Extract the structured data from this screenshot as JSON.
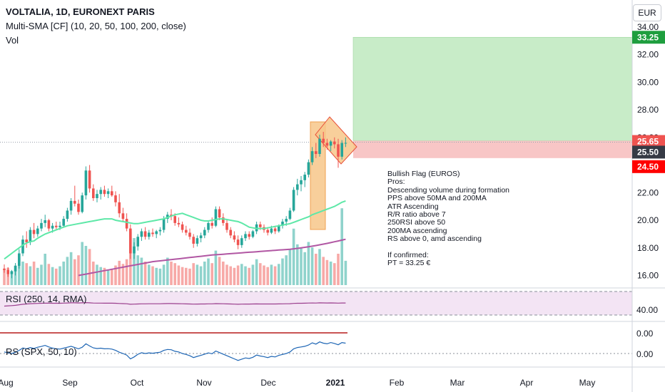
{
  "header": {
    "symbol": "VOLTALIA, 1D, EURONEXT PARIS",
    "sma": "Multi-SMA [CF] (10, 20, 50, 100, 200, close)",
    "vol": "Vol",
    "currency": "EUR"
  },
  "colors": {
    "up": "#26a69a",
    "down": "#ef5350",
    "vol_up": "#8fd3cc",
    "vol_down": "#f7a9a7",
    "sma50": "#5ee8a8",
    "sma200": "#b157a3",
    "target_zone": "#c8ecc8",
    "stop_zone": "#f8c6c6",
    "flag": "#f7c78a",
    "rsi_line": "#9b3f8e",
    "rsi_band": "#f3e4f4",
    "rs_line": "#1e66b5",
    "rs_baseline": "#b71c1c"
  },
  "note": {
    "lines": [
      "Bullish Flag (EUROS)",
      "Pros:",
      "Descending volume during formation",
      "PPS above 50MA and 200MA",
      "ATR Ascending",
      "R/R ratio above 7",
      "250RSI above 50",
      "200MA ascending",
      "RS above 0, amd ascending",
      "",
      "If confirmed:",
      "PT = 33.25 €"
    ]
  },
  "chart_data": {
    "type": "candlestick",
    "price_ticks": [
      "34.00",
      "32.00",
      "30.00",
      "28.00",
      "26.00",
      "24.00",
      "22.00",
      "20.00",
      "18.00",
      "16.00"
    ],
    "price_ylim": [
      15.2,
      34.4
    ],
    "price_tags": [
      {
        "label": "33.25",
        "value": 33.25,
        "color": "#1e9e3e"
      },
      {
        "label": "25.65",
        "value": 25.65,
        "color": "#ef5350"
      },
      {
        "label": "25.50",
        "value": 25.5,
        "color": "#363a45"
      },
      {
        "label": "24.50",
        "value": 24.5,
        "color": "#ff0000"
      }
    ],
    "x_labels": [
      "Aug",
      "Sep",
      "Oct",
      "Nov",
      "Dec",
      "2021",
      "Feb",
      "Mar",
      "Apr",
      "May"
    ],
    "rsi": {
      "label": "RSI (250, 14, RMA)",
      "ticks": [
        "40.00"
      ],
      "band": [
        30,
        70
      ],
      "ylim": [
        20,
        80
      ],
      "value": 54
    },
    "rs": {
      "label": "RS (SPX, 50, 10)",
      "ticks": [
        "0.00",
        "0.00"
      ]
    },
    "trade": {
      "target": 33.25,
      "entry": 25.5,
      "stop": 24.5
    },
    "candles": [
      [
        16.5,
        16.8,
        16.2,
        16.4
      ],
      [
        16.4,
        16.6,
        15.9,
        16.1
      ],
      [
        16.1,
        16.4,
        15.8,
        16.3
      ],
      [
        16.3,
        16.9,
        16.0,
        16.7
      ],
      [
        16.7,
        17.9,
        16.5,
        17.6
      ],
      [
        17.6,
        18.9,
        17.4,
        18.6
      ],
      [
        18.6,
        19.2,
        18.0,
        18.4
      ],
      [
        18.4,
        19.5,
        18.2,
        19.3
      ],
      [
        19.3,
        19.8,
        18.7,
        19.0
      ],
      [
        19.0,
        19.6,
        18.8,
        19.4
      ],
      [
        19.4,
        20.1,
        19.2,
        19.8
      ],
      [
        19.8,
        20.4,
        19.5,
        20.0
      ],
      [
        20.0,
        20.1,
        19.2,
        19.4
      ],
      [
        19.4,
        19.8,
        19.1,
        19.6
      ],
      [
        19.6,
        19.9,
        19.3,
        19.5
      ],
      [
        19.5,
        19.9,
        19.3,
        19.6
      ],
      [
        19.6,
        20.3,
        19.5,
        20.1
      ],
      [
        20.1,
        20.9,
        19.9,
        20.7
      ],
      [
        20.7,
        21.6,
        20.4,
        21.4
      ],
      [
        21.4,
        22.5,
        21.0,
        21.2
      ],
      [
        21.2,
        21.5,
        20.4,
        20.6
      ],
      [
        20.6,
        22.0,
        20.5,
        21.8
      ],
      [
        21.8,
        23.9,
        21.5,
        23.6
      ],
      [
        23.6,
        24.0,
        22.0,
        22.3
      ],
      [
        22.3,
        22.6,
        21.4,
        21.6
      ],
      [
        21.6,
        22.2,
        21.3,
        21.9
      ],
      [
        21.9,
        22.4,
        21.5,
        22.2
      ],
      [
        22.2,
        22.5,
        21.7,
        21.9
      ],
      [
        21.9,
        22.3,
        21.6,
        22.1
      ],
      [
        22.1,
        22.5,
        21.7,
        21.8
      ],
      [
        21.8,
        22.1,
        21.0,
        21.3
      ],
      [
        21.3,
        21.9,
        20.2,
        20.5
      ],
      [
        20.5,
        20.9,
        19.9,
        20.1
      ],
      [
        20.1,
        20.5,
        19.2,
        19.4
      ],
      [
        19.4,
        19.7,
        17.2,
        17.6
      ],
      [
        17.6,
        18.4,
        17.2,
        18.1
      ],
      [
        18.1,
        19.0,
        17.8,
        18.8
      ],
      [
        18.8,
        19.4,
        18.5,
        19.2
      ],
      [
        19.2,
        19.5,
        18.6,
        18.8
      ],
      [
        18.8,
        19.3,
        18.6,
        19.1
      ],
      [
        19.1,
        19.4,
        18.8,
        19.0
      ],
      [
        19.0,
        19.3,
        18.7,
        19.2
      ],
      [
        19.2,
        19.5,
        18.9,
        19.3
      ],
      [
        19.3,
        20.3,
        19.1,
        20.1
      ],
      [
        20.1,
        20.6,
        19.8,
        20.4
      ],
      [
        20.4,
        20.8,
        20.0,
        20.3
      ],
      [
        20.3,
        20.5,
        19.6,
        19.8
      ],
      [
        19.8,
        20.2,
        19.5,
        19.7
      ],
      [
        19.7,
        19.9,
        19.1,
        19.3
      ],
      [
        19.3,
        19.6,
        18.9,
        19.1
      ],
      [
        19.1,
        19.4,
        18.6,
        18.8
      ],
      [
        18.8,
        19.0,
        18.0,
        18.3
      ],
      [
        18.3,
        18.9,
        18.1,
        18.7
      ],
      [
        18.7,
        19.1,
        18.4,
        18.9
      ],
      [
        18.9,
        19.5,
        18.7,
        19.3
      ],
      [
        19.3,
        20.0,
        19.1,
        19.8
      ],
      [
        19.8,
        20.2,
        19.4,
        19.6
      ],
      [
        19.6,
        21.0,
        19.5,
        20.8
      ],
      [
        20.8,
        21.0,
        20.0,
        20.2
      ],
      [
        20.2,
        20.5,
        19.6,
        19.8
      ],
      [
        19.8,
        20.0,
        19.1,
        19.3
      ],
      [
        19.3,
        19.5,
        18.7,
        18.9
      ],
      [
        18.9,
        19.2,
        18.4,
        18.6
      ],
      [
        18.6,
        18.9,
        17.9,
        18.2
      ],
      [
        18.2,
        18.9,
        18.0,
        18.7
      ],
      [
        18.7,
        19.2,
        18.5,
        19.0
      ],
      [
        19.0,
        19.2,
        18.6,
        18.8
      ],
      [
        18.8,
        19.3,
        18.7,
        19.2
      ],
      [
        19.2,
        19.9,
        19.0,
        19.7
      ],
      [
        19.7,
        19.9,
        19.3,
        19.5
      ],
      [
        19.5,
        19.7,
        19.1,
        19.3
      ],
      [
        19.3,
        19.5,
        18.9,
        19.1
      ],
      [
        19.1,
        19.6,
        19.0,
        19.4
      ],
      [
        19.4,
        19.6,
        19.0,
        19.2
      ],
      [
        19.2,
        19.7,
        19.1,
        19.6
      ],
      [
        19.6,
        20.1,
        19.4,
        19.9
      ],
      [
        19.9,
        20.3,
        19.6,
        20.1
      ],
      [
        20.1,
        20.9,
        20.0,
        20.7
      ],
      [
        20.7,
        22.4,
        20.6,
        22.2
      ],
      [
        22.2,
        23.0,
        21.8,
        22.6
      ],
      [
        22.6,
        23.2,
        22.1,
        22.9
      ],
      [
        22.9,
        23.5,
        22.4,
        23.3
      ],
      [
        23.3,
        24.4,
        23.1,
        24.2
      ],
      [
        24.2,
        25.3,
        24.0,
        25.0
      ],
      [
        25.0,
        25.6,
        24.5,
        24.8
      ],
      [
        24.8,
        26.2,
        24.6,
        25.9
      ],
      [
        25.9,
        26.4,
        25.3,
        25.6
      ],
      [
        25.6,
        25.9,
        25.1,
        25.4
      ],
      [
        25.4,
        25.8,
        25.0,
        25.7
      ],
      [
        25.7,
        26.0,
        25.2,
        25.5
      ],
      [
        25.5,
        25.9,
        23.8,
        24.6
      ],
      [
        24.6,
        25.8,
        24.4,
        25.6
      ],
      [
        25.6,
        26.0,
        25.3,
        25.6
      ]
    ],
    "volume": [
      0.2,
      0.22,
      0.18,
      0.25,
      0.35,
      0.3,
      0.28,
      0.24,
      0.3,
      0.22,
      0.26,
      0.4,
      0.27,
      0.23,
      0.21,
      0.24,
      0.3,
      0.36,
      0.42,
      0.33,
      0.38,
      0.55,
      0.5,
      0.46,
      0.3,
      0.26,
      0.23,
      0.22,
      0.2,
      0.21,
      0.25,
      0.31,
      0.27,
      0.33,
      0.68,
      0.6,
      0.38,
      0.35,
      0.3,
      0.26,
      0.24,
      0.22,
      0.21,
      0.26,
      0.35,
      0.3,
      0.28,
      0.25,
      0.23,
      0.22,
      0.21,
      0.28,
      0.26,
      0.24,
      0.3,
      0.34,
      0.28,
      0.44,
      0.36,
      0.3,
      0.26,
      0.24,
      0.22,
      0.25,
      0.27,
      0.24,
      0.22,
      0.26,
      0.33,
      0.28,
      0.25,
      0.23,
      0.26,
      0.24,
      0.27,
      0.34,
      0.38,
      0.45,
      0.72,
      0.52,
      0.48,
      0.42,
      0.55,
      0.48,
      0.4,
      0.46,
      0.36,
      0.32,
      0.3,
      0.28,
      0.4,
      0.98,
      0.31
    ],
    "sma50": [
      17.2,
      17.4,
      17.6,
      17.8,
      18.0,
      18.2,
      18.35,
      18.45,
      18.5,
      18.7,
      18.85,
      19.0,
      19.1,
      19.2,
      19.3,
      19.4,
      19.5,
      19.6,
      19.65,
      19.7,
      19.75,
      19.8,
      19.85,
      19.9,
      19.95,
      20.0,
      20.05,
      20.1,
      20.1,
      20.1,
      20.0,
      19.95,
      19.9,
      19.85,
      19.8,
      19.75,
      19.75,
      19.8,
      19.85,
      19.9,
      19.95,
      20.0,
      20.05,
      20.1,
      20.2,
      20.3,
      20.4,
      20.45,
      20.5,
      20.4,
      20.3,
      20.2,
      20.1,
      20.0,
      19.95,
      19.95,
      20.0,
      20.05,
      20.1,
      20.1,
      20.05,
      20.0,
      19.95,
      19.9,
      19.8,
      19.65,
      19.5,
      19.45,
      19.4,
      19.4,
      19.4,
      19.45,
      19.5,
      19.55,
      19.6,
      19.65,
      19.7,
      19.75,
      19.85,
      19.95,
      20.05,
      20.15,
      20.25,
      20.4,
      20.5,
      20.6,
      20.7,
      20.8,
      20.9,
      21.0,
      21.15,
      21.3,
      21.4
    ],
    "sma200": [
      null,
      null,
      null,
      null,
      null,
      null,
      null,
      null,
      null,
      null,
      null,
      null,
      null,
      null,
      null,
      null,
      null,
      null,
      null,
      null,
      16.0,
      16.05,
      16.1,
      16.15,
      16.2,
      16.25,
      16.3,
      16.35,
      16.4,
      16.45,
      16.5,
      16.55,
      16.6,
      16.65,
      16.7,
      16.75,
      16.8,
      16.85,
      16.9,
      16.95,
      17.0,
      17.03,
      17.06,
      17.09,
      17.12,
      17.15,
      17.18,
      17.21,
      17.24,
      17.27,
      17.3,
      17.33,
      17.36,
      17.39,
      17.42,
      17.45,
      17.48,
      17.5,
      17.52,
      17.54,
      17.56,
      17.58,
      17.6,
      17.62,
      17.64,
      17.66,
      17.68,
      17.7,
      17.72,
      17.74,
      17.76,
      17.78,
      17.8,
      17.82,
      17.84,
      17.86,
      17.88,
      17.9,
      17.93,
      17.96,
      18.0,
      18.04,
      18.08,
      18.12,
      18.17,
      18.22,
      18.27,
      18.32,
      18.38,
      18.44,
      18.5,
      18.56,
      18.62
    ],
    "rsi_values": [
      48.0,
      48.5,
      49.0,
      49.5,
      50.5,
      51.5,
      52.0,
      52.5,
      52.8,
      53.0,
      53.3,
      53.5,
      53.4,
      53.3,
      53.3,
      53.3,
      53.5,
      53.8,
      54.0,
      54.0,
      53.8,
      54.0,
      54.5,
      54.0,
      53.6,
      53.5,
      53.5,
      53.4,
      53.4,
      53.4,
      53.2,
      52.9,
      52.6,
      52.3,
      51.5,
      51.7,
      52.0,
      52.2,
      52.2,
      52.3,
      52.3,
      52.3,
      52.4,
      52.6,
      52.8,
      52.8,
      52.6,
      52.5,
      52.3,
      52.1,
      51.9,
      51.7,
      51.8,
      51.9,
      52.0,
      52.2,
      52.2,
      52.6,
      52.5,
      52.3,
      52.1,
      51.9,
      51.7,
      51.5,
      51.7,
      51.8,
      51.8,
      51.9,
      52.1,
      52.0,
      52.0,
      51.9,
      52.0,
      52.0,
      52.1,
      52.2,
      52.3,
      52.5,
      53.0,
      53.2,
      53.3,
      53.4,
      53.6,
      53.8,
      53.7,
      54.0,
      53.9,
      53.8,
      53.9,
      53.8,
      53.5,
      53.8,
      53.8
    ],
    "rs_values": [
      0.1,
      0.05,
      0.0,
      0.08,
      0.2,
      0.35,
      0.3,
      0.38,
      0.32,
      0.4,
      0.45,
      0.52,
      0.42,
      0.35,
      0.3,
      0.28,
      0.34,
      0.4,
      0.46,
      0.38,
      0.3,
      0.4,
      0.62,
      0.48,
      0.36,
      0.32,
      0.34,
      0.3,
      0.31,
      0.28,
      0.2,
      0.08,
      0.0,
      -0.1,
      -0.34,
      -0.22,
      -0.05,
      0.05,
      0.0,
      0.04,
      0.02,
      0.05,
      0.08,
      0.2,
      0.26,
      0.24,
      0.14,
      0.1,
      0.0,
      -0.06,
      -0.14,
      -0.26,
      -0.18,
      -0.12,
      -0.04,
      0.04,
      -0.02,
      0.16,
      0.06,
      -0.04,
      -0.14,
      -0.24,
      -0.34,
      -0.44,
      -0.36,
      -0.28,
      -0.32,
      -0.24,
      -0.1,
      -0.16,
      -0.2,
      -0.26,
      -0.18,
      -0.22,
      -0.12,
      -0.06,
      0.0,
      0.1,
      0.3,
      0.38,
      0.42,
      0.46,
      0.54,
      0.68,
      0.6,
      0.74,
      0.66,
      0.62,
      0.7,
      0.64,
      0.56,
      0.7,
      0.66
    ]
  }
}
